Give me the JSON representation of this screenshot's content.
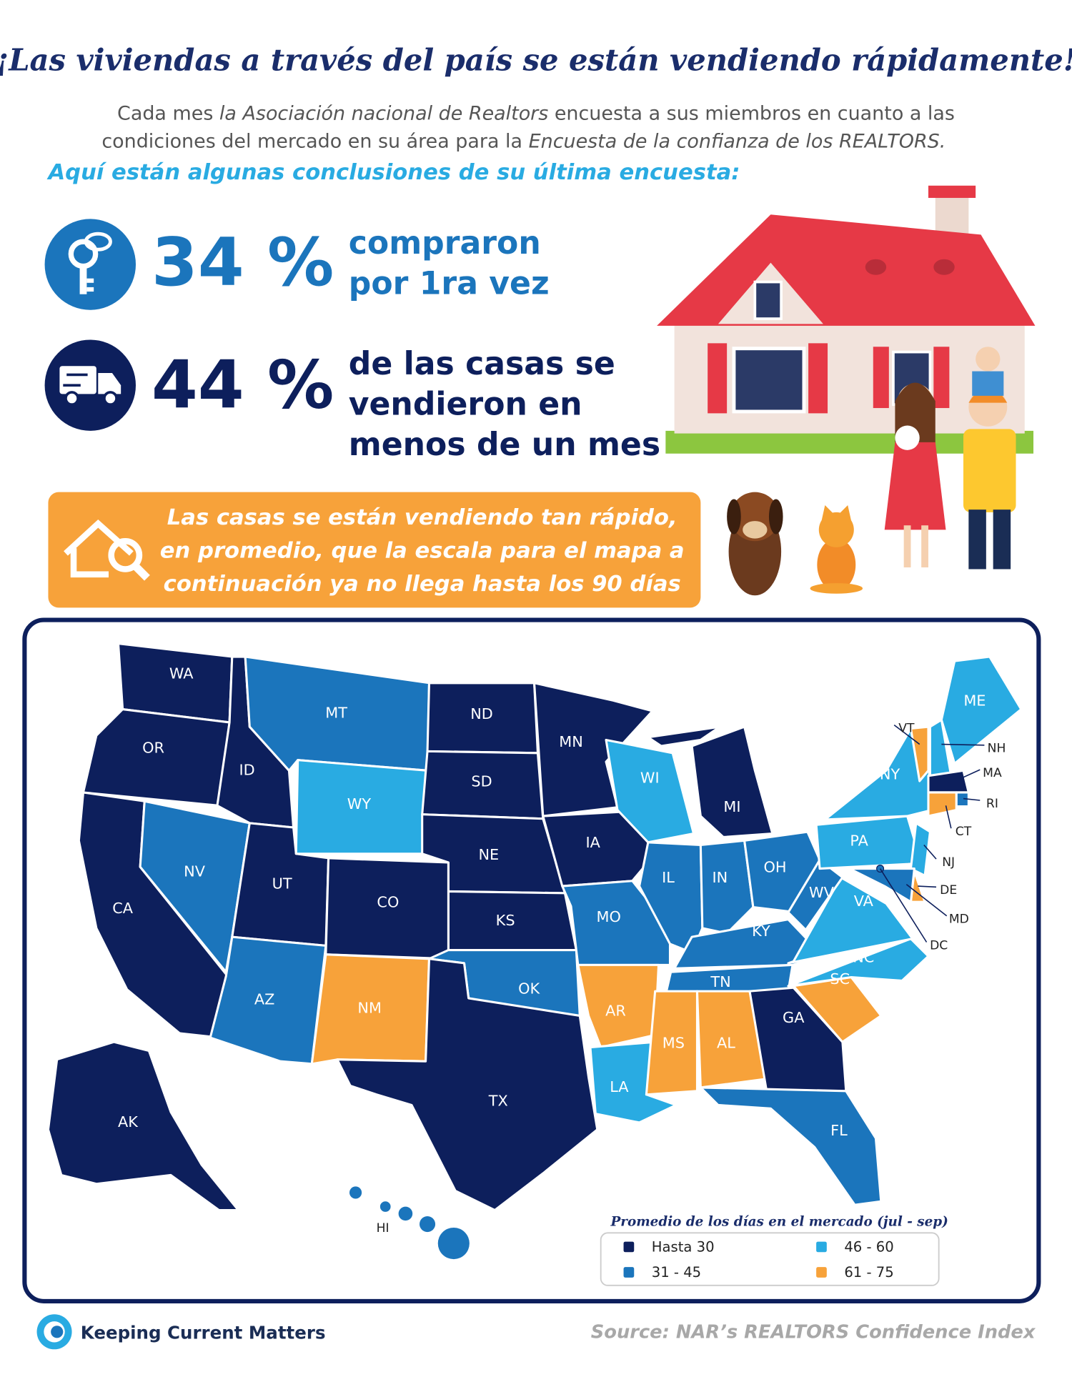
{
  "header": {
    "title": "¡Las viviendas a través del país se están vendiendo rápidamente!",
    "intro": [
      [
        {
          "text": "Cada mes ",
          "italic": false
        },
        {
          "text": "la Asociación nacional de Realtors",
          "italic": true
        },
        {
          "text": " encuesta a sus miembros en cuanto a las",
          "italic": false
        }
      ],
      [
        {
          "text": "condiciones del mercado en su área para la ",
          "italic": false
        },
        {
          "text": "Encuesta de la confianza de los REALTORS.",
          "italic": true
        }
      ]
    ],
    "highlight": "Aquí están algunas conclusiones de su última encuesta:"
  },
  "stats": [
    {
      "figure": "34 %",
      "lines": [
        "compraron",
        "por 1ra vez"
      ]
    },
    {
      "figure": "44 %",
      "lines": [
        "de las casas se",
        "vendieron en",
        "menos de un mes"
      ]
    }
  ],
  "callout": [
    "Las casas se están vendiendo tan rápido,",
    "en promedio, que la escala para el mapa a",
    "continuación ya no llega hasta los 90 días"
  ],
  "map": {
    "states": [
      {
        "abbr": "WA",
        "group": 0
      },
      {
        "abbr": "OR",
        "group": 0
      },
      {
        "abbr": "CA",
        "group": 0
      },
      {
        "abbr": "ID",
        "group": 0
      },
      {
        "abbr": "NV",
        "group": 1
      },
      {
        "abbr": "UT",
        "group": 0
      },
      {
        "abbr": "AZ",
        "group": 1
      },
      {
        "abbr": "MT",
        "group": 1
      },
      {
        "abbr": "WY",
        "group": 2
      },
      {
        "abbr": "CO",
        "group": 0
      },
      {
        "abbr": "NM",
        "group": 3
      },
      {
        "abbr": "ND",
        "group": 0
      },
      {
        "abbr": "SD",
        "group": 0
      },
      {
        "abbr": "NE",
        "group": 0
      },
      {
        "abbr": "KS",
        "group": 0
      },
      {
        "abbr": "OK",
        "group": 1
      },
      {
        "abbr": "TX",
        "group": 0
      },
      {
        "abbr": "MN",
        "group": 0
      },
      {
        "abbr": "IA",
        "group": 0
      },
      {
        "abbr": "MO",
        "group": 1
      },
      {
        "abbr": "AR",
        "group": 3
      },
      {
        "abbr": "LA",
        "group": 2
      },
      {
        "abbr": "WI",
        "group": 2
      },
      {
        "abbr": "IL",
        "group": 1
      },
      {
        "abbr": "MI",
        "group": 0
      },
      {
        "abbr": "IN",
        "group": 1
      },
      {
        "abbr": "OH",
        "group": 1
      },
      {
        "abbr": "KY",
        "group": 1
      },
      {
        "abbr": "TN",
        "group": 1
      },
      {
        "abbr": "MS",
        "group": 3
      },
      {
        "abbr": "AL",
        "group": 3
      },
      {
        "abbr": "GA",
        "group": 0
      },
      {
        "abbr": "FL",
        "group": 1
      },
      {
        "abbr": "SC",
        "group": 3
      },
      {
        "abbr": "NC",
        "group": 2
      },
      {
        "abbr": "VA",
        "group": 2
      },
      {
        "abbr": "WV",
        "group": 1
      },
      {
        "abbr": "PA",
        "group": 2
      },
      {
        "abbr": "NY",
        "group": 2
      },
      {
        "abbr": "VT",
        "group": 3
      },
      {
        "abbr": "NH",
        "group": 2
      },
      {
        "abbr": "ME",
        "group": 2
      },
      {
        "abbr": "MA",
        "group": 0
      },
      {
        "abbr": "RI",
        "group": 1
      },
      {
        "abbr": "CT",
        "group": 3
      },
      {
        "abbr": "NJ",
        "group": 2
      },
      {
        "abbr": "DE",
        "group": 3
      },
      {
        "abbr": "MD",
        "group": 1
      },
      {
        "abbr": "DC",
        "group": 1
      },
      {
        "abbr": "AK",
        "group": 0
      },
      {
        "abbr": "HI",
        "group": 1
      }
    ],
    "legend": {
      "title": "Promedio de los días en el mercado  (jul - sep)",
      "groups": [
        {
          "label": "Hasta 30",
          "color": "#0d1f5c"
        },
        {
          "label": "31 - 45",
          "color": "#1b75bc"
        },
        {
          "label": "46 - 60",
          "color": "#29abe2"
        },
        {
          "label": "61 - 75",
          "color": "#f7a23a"
        }
      ]
    }
  },
  "footer": {
    "brand": "Keeping Current Matters",
    "source": "Source: NAR’s REALTORS Confidence Index"
  }
}
